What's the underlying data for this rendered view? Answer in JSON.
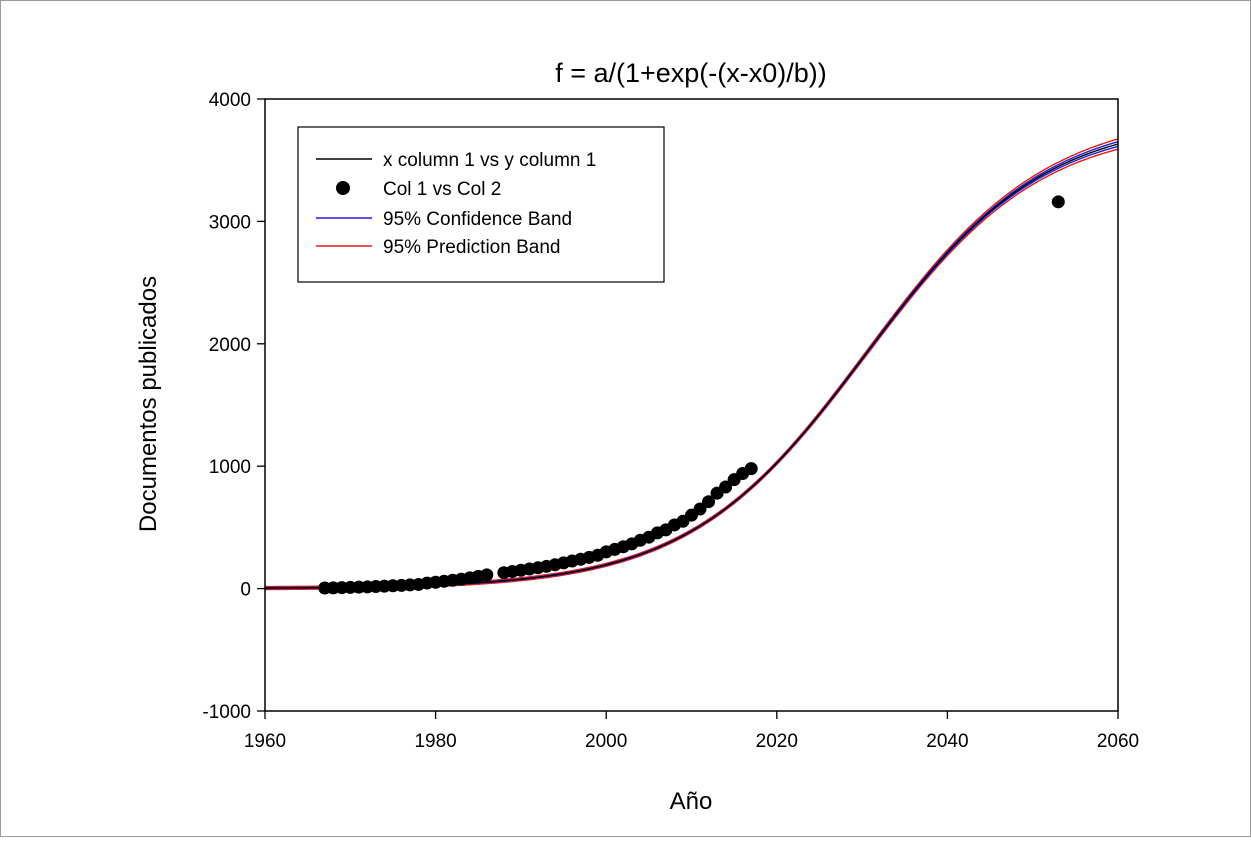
{
  "chart_data": {
    "type": "scatter",
    "title": "f = a/(1+exp(-(x-x0)/b))",
    "xlabel": "Año",
    "ylabel": "Documentos publicados",
    "xlim": [
      1960,
      2060
    ],
    "ylim": [
      -1000,
      4000
    ],
    "x_ticks": [
      1960,
      1980,
      2000,
      2020,
      2040,
      2060
    ],
    "y_ticks": [
      -1000,
      0,
      1000,
      2000,
      3000,
      4000
    ],
    "grid": false,
    "legend_position": "top-left",
    "legend": [
      {
        "label": "x column 1 vs y column 1",
        "kind": "line",
        "color": "#000000"
      },
      {
        "label": "Col 1 vs Col 2",
        "kind": "marker",
        "color": "#000000"
      },
      {
        "label": "95% Confidence Band",
        "kind": "line",
        "color": "#1f1fd6"
      },
      {
        "label": "95% Prediction Band",
        "kind": "line",
        "color": "#e01b1b"
      }
    ],
    "fit_curve": {
      "a": 3845,
      "x0": 2030.5,
      "b": 10.4
    },
    "series": [
      {
        "name": "Col 1 vs Col 2",
        "x": [
          1967,
          1968,
          1969,
          1970,
          1971,
          1972,
          1973,
          1974,
          1975,
          1976,
          1977,
          1978,
          1979,
          1980,
          1981,
          1982,
          1983,
          1984,
          1985,
          1986,
          1988,
          1989,
          1990,
          1991,
          1992,
          1993,
          1994,
          1995,
          1996,
          1997,
          1998,
          1999,
          2000,
          2001,
          2002,
          2003,
          2004,
          2005,
          2006,
          2007,
          2008,
          2009,
          2010,
          2011,
          2012,
          2013,
          2014,
          2015,
          2016,
          2017,
          2053
        ],
        "y": [
          5,
          6,
          8,
          10,
          12,
          14,
          17,
          20,
          23,
          26,
          30,
          34,
          45,
          52,
          60,
          68,
          76,
          88,
          100,
          112,
          130,
          140,
          150,
          160,
          170,
          182,
          195,
          210,
          225,
          240,
          255,
          272,
          300,
          320,
          342,
          365,
          395,
          420,
          455,
          480,
          520,
          550,
          600,
          650,
          710,
          780,
          830,
          890,
          940,
          980,
          3160
        ]
      }
    ]
  }
}
